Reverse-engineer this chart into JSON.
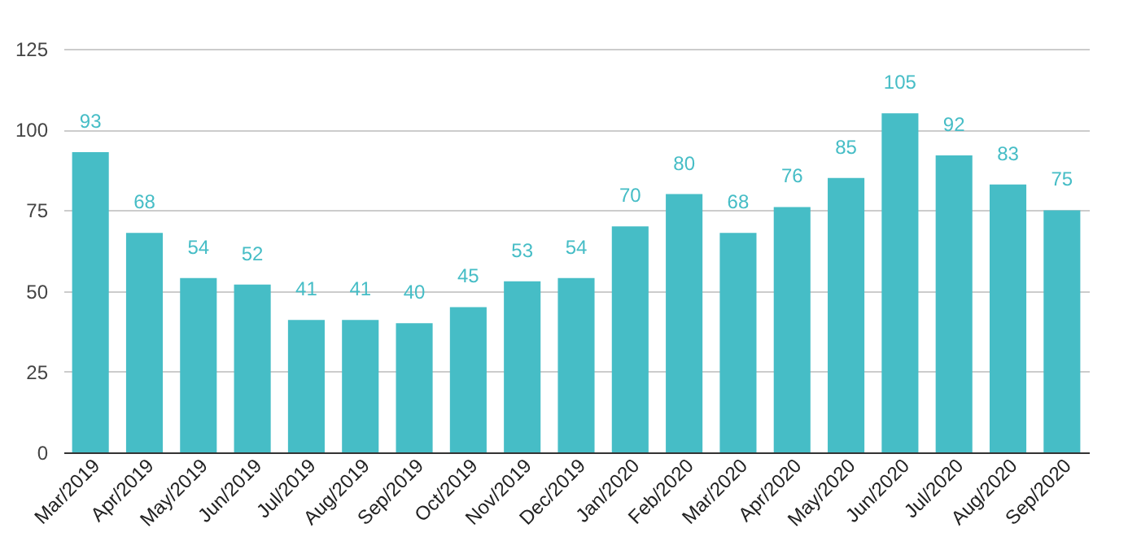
{
  "chart_data": {
    "type": "bar",
    "categories": [
      "Mar/2019",
      "Apr/2019",
      "May/2019",
      "Jun/2019",
      "Jul/2019",
      "Aug/2019",
      "Sep/2019",
      "Oct/2019",
      "Nov/2019",
      "Dec/2019",
      "Jan/2020",
      "Feb/2020",
      "Mar/2020",
      "Apr/2020",
      "May/2020",
      "Jun/2020",
      "Jul/2020",
      "Aug/2020",
      "Sep/2020"
    ],
    "values": [
      93,
      68,
      54,
      52,
      41,
      41,
      40,
      45,
      53,
      54,
      70,
      80,
      68,
      76,
      85,
      105,
      92,
      83,
      75
    ],
    "color": "#46bdc6",
    "ylim": [
      0,
      125
    ],
    "yticks": [
      0,
      25,
      50,
      75,
      100,
      125
    ],
    "grid": "y",
    "data_labels": true
  }
}
